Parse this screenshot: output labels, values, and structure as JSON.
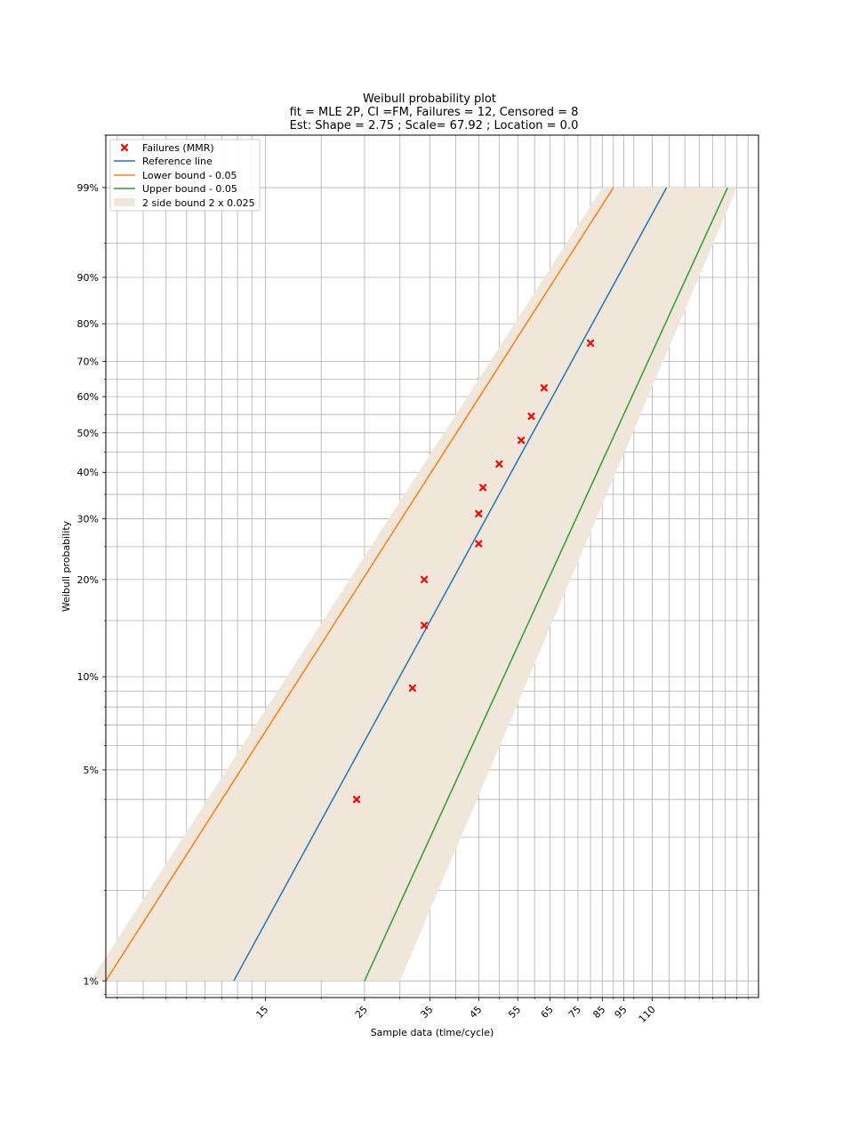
{
  "chart_data": {
    "type": "scatter",
    "title_lines": [
      "Weibull probability plot",
      "fit = MLE 2P, CI =FM, Failures = 12, Censored = 8",
      "Est:  Shape = 2.75 ; Scale= 67.92 ; Location = 0.0"
    ],
    "xlabel": "Sample data (time/cycle)",
    "ylabel": "Weibull probability",
    "x_scale": "log",
    "y_scale": "weibull",
    "xlim": [
      6.6,
      190
    ],
    "ylim": [
      0.0088,
      0.999
    ],
    "x_tick_values": [
      15,
      25,
      35,
      45,
      55,
      65,
      75,
      85,
      95,
      110
    ],
    "x_tick_labels": [
      "15",
      "25",
      "35",
      "45",
      "55",
      "65",
      "75",
      "85",
      "95",
      "110"
    ],
    "x_minor_ticks": [
      7,
      8,
      9,
      10,
      11,
      12,
      13,
      14,
      20,
      30,
      40,
      50,
      60,
      70,
      80,
      90,
      100,
      120,
      130,
      140,
      150,
      160,
      170,
      180
    ],
    "y_tick_values": [
      0.01,
      0.05,
      0.1,
      0.2,
      0.3,
      0.4,
      0.5,
      0.6,
      0.7,
      0.8,
      0.9,
      0.99
    ],
    "y_tick_labels": [
      "1%",
      "5%",
      "10%",
      "20%",
      "30%",
      "40%",
      "50%",
      "60%",
      "70%",
      "80%",
      "90%",
      "99%"
    ],
    "y_minor_ticks": [
      0.009,
      0.02,
      0.03,
      0.04,
      0.06,
      0.07,
      0.08,
      0.09,
      0.15,
      0.25,
      0.35,
      0.45,
      0.55,
      0.65,
      0.95,
      0.999
    ],
    "grid": true,
    "legend_position": "upper-left",
    "failures": {
      "name": "Failures (MMR)",
      "color": "#ff0000",
      "x": [
        24.0,
        32.0,
        34.0,
        34.0,
        45.0,
        45.0,
        46.0,
        50.0,
        56.0,
        59.0,
        63.0,
        80.0
      ],
      "y": [
        0.04,
        0.092,
        0.145,
        0.2,
        0.255,
        0.31,
        0.365,
        0.42,
        0.48,
        0.545,
        0.625,
        0.75
      ]
    },
    "reference_line": {
      "name": "Reference line",
      "color": "#1f77b4",
      "shape": 2.75,
      "scale": 67.92
    },
    "lower_bound": {
      "name": "Lower bound - 0.05",
      "color": "#ff7f0e",
      "x_at_1pct": 6.6,
      "x_at_99pct": 90
    },
    "upper_bound": {
      "name": "Upper bound - 0.05",
      "color": "#2ca02c",
      "x_at_1pct": 25,
      "x_at_99pct": 162
    },
    "band": {
      "name": "2 side bound 2 x 0.025",
      "color": "#f0e6da",
      "lower_x_at_1pct": 6.1,
      "lower_x_at_99pct": 85,
      "upper_x_at_1pct": 30,
      "upper_x_at_99pct": 170
    }
  }
}
